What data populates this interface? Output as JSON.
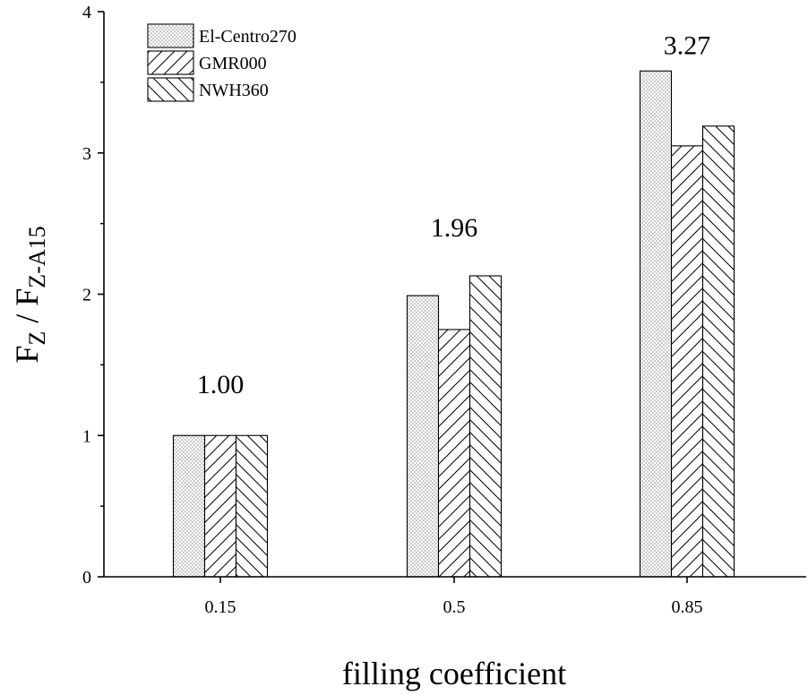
{
  "chart_data": {
    "type": "bar",
    "title": "",
    "xlabel": "filling coefficient",
    "ylabel": {
      "main1": "F",
      "sub1": "Z",
      "sep": " / F",
      "sub2": "Z-A15"
    },
    "categories": [
      "0.15",
      "0.5",
      "0.85"
    ],
    "series": [
      {
        "name": "El-Centro270",
        "pattern": "dots",
        "values": [
          1.0,
          1.99,
          3.58
        ]
      },
      {
        "name": "GMR000",
        "pattern": "diag-forward",
        "values": [
          1.0,
          1.75,
          3.05
        ]
      },
      {
        "name": "NWH360",
        "pattern": "diag-backward",
        "values": [
          1.0,
          2.13,
          3.19
        ]
      }
    ],
    "annotations": [
      {
        "text": "1.00",
        "category": "0.15",
        "y": 1.3
      },
      {
        "text": "1.96",
        "category": "0.5",
        "y": 2.41
      },
      {
        "text": "3.27",
        "category": "0.85",
        "y": 3.7
      }
    ],
    "ylim": [
      0,
      4
    ],
    "yticks": [
      "0",
      "1",
      "2",
      "3",
      "4"
    ],
    "grid": false,
    "legend_position": "top-left",
    "colors": {
      "bar_stroke": "#000000",
      "bar_fill": "#ffffff",
      "pattern": "#000000"
    }
  }
}
